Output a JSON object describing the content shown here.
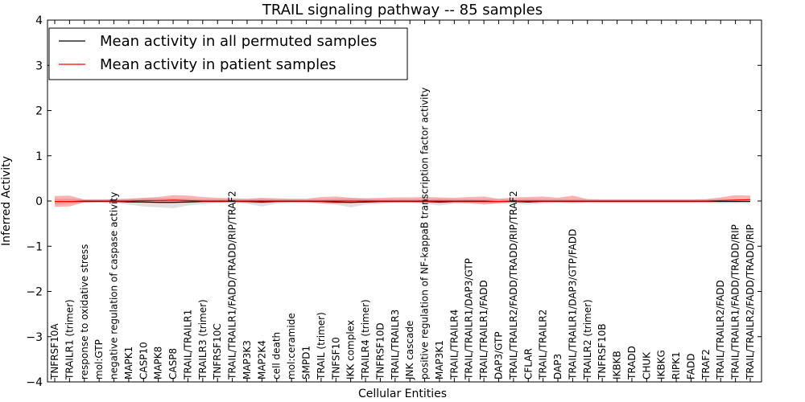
{
  "chart_data": {
    "type": "line",
    "title": "TRAIL signaling pathway -- 85 samples",
    "xlabel": "Cellular Entities",
    "ylabel": "Inferred Activity",
    "ylim": [
      -4,
      4
    ],
    "yticks": [
      "4",
      "3",
      "2",
      "1",
      "0",
      "−1",
      "−2",
      "−3",
      "−4"
    ],
    "ytick_values": [
      4,
      3,
      2,
      1,
      0,
      -1,
      -2,
      -3,
      -4
    ],
    "legend_position": "top-left",
    "categories": [
      "TNFRSF10A",
      "TRAILR1 (trimer)",
      "response to oxidative stress",
      "mol:GTP",
      "negative regulation of caspase activity",
      "MAPK1",
      "CASP10",
      "MAPK8",
      "CASP8",
      "TRAIL/TRAILR1",
      "TRAILR3 (trimer)",
      "TNFRSF10C",
      "TRAIL/TRAILR1/FADD/TRADD/RIP/TRAF2",
      "MAP3K3",
      "MAP2K4",
      "cell death",
      "mol:ceramide",
      "SMPD1",
      "TRAIL (trimer)",
      "TNFSF10",
      "IKK complex",
      "TRAILR4 (trimer)",
      "TNFRSF10D",
      "TRAIL/TRAILR3",
      "JNK cascade",
      "positive regulation of NF-kappaB transcription factor activity",
      "MAP3K1",
      "TRAIL/TRAILR4",
      "TRAIL/TRAILR1/DAP3/GTP",
      "TRAIL/TRAILR1/FADD",
      "DAP3/GTP",
      "TRAIL/TRAILR2/FADD/TRADD/RIP/TRAF2",
      "CFLAR",
      "TRAIL/TRAILR2",
      "DAP3",
      "TRAIL/TRAILR1/DAP3/GTP/FADD",
      "TRAILR2 (trimer)",
      "TNFRSF10B",
      "IKBKB",
      "TRADD",
      "CHUK",
      "IKBKG",
      "RIPK1",
      "FADD",
      "TRAF2",
      "TRAIL/TRAILR2/FADD",
      "TRAIL/TRAILR1/FADD/TRADD/RIP",
      "TRAIL/TRAILR2/FADD/TRADD/RIP"
    ],
    "series": [
      {
        "name": "Mean activity in all permuted samples",
        "color": "#000000",
        "values": [
          -0.01,
          -0.01,
          -0.01,
          -0.01,
          -0.01,
          -0.02,
          -0.02,
          -0.03,
          -0.03,
          -0.02,
          -0.01,
          -0.01,
          -0.01,
          -0.01,
          -0.02,
          -0.01,
          -0.01,
          -0.01,
          -0.01,
          -0.02,
          -0.03,
          -0.02,
          -0.01,
          -0.01,
          -0.01,
          -0.01,
          -0.02,
          -0.01,
          -0.01,
          -0.01,
          -0.01,
          -0.01,
          -0.02,
          -0.01,
          -0.01,
          -0.01,
          -0.01,
          -0.01,
          -0.01,
          -0.01,
          -0.01,
          -0.01,
          -0.01,
          -0.01,
          -0.01,
          -0.01,
          -0.01,
          -0.01
        ],
        "band_low": [
          -0.08,
          -0.06,
          -0.04,
          -0.04,
          -0.05,
          -0.08,
          -0.12,
          -0.14,
          -0.16,
          -0.1,
          -0.07,
          -0.05,
          -0.05,
          -0.06,
          -0.12,
          -0.06,
          -0.05,
          -0.05,
          -0.06,
          -0.08,
          -0.14,
          -0.08,
          -0.06,
          -0.05,
          -0.05,
          -0.06,
          -0.1,
          -0.06,
          -0.05,
          -0.05,
          -0.06,
          -0.06,
          -0.08,
          -0.06,
          -0.05,
          -0.06,
          -0.05,
          -0.05,
          -0.05,
          -0.05,
          -0.05,
          -0.05,
          -0.05,
          -0.05,
          -0.05,
          -0.05,
          -0.05,
          -0.05
        ],
        "band_high": [
          0.05,
          0.05,
          0.04,
          0.04,
          0.04,
          0.05,
          0.06,
          0.06,
          0.06,
          0.05,
          0.04,
          0.04,
          0.04,
          0.04,
          0.05,
          0.04,
          0.04,
          0.04,
          0.04,
          0.05,
          0.06,
          0.05,
          0.04,
          0.04,
          0.04,
          0.04,
          0.05,
          0.04,
          0.04,
          0.04,
          0.04,
          0.04,
          0.05,
          0.04,
          0.04,
          0.04,
          0.04,
          0.04,
          0.04,
          0.04,
          0.04,
          0.04,
          0.04,
          0.04,
          0.04,
          0.04,
          0.04,
          0.04
        ]
      },
      {
        "name": "Mean activity in patient samples",
        "color": "#ff0000",
        "values": [
          -0.01,
          -0.01,
          0.0,
          0.0,
          0.0,
          0.0,
          0.01,
          0.01,
          0.02,
          0.01,
          0.0,
          0.0,
          0.0,
          0.0,
          0.0,
          0.0,
          0.0,
          0.0,
          0.0,
          0.0,
          0.0,
          0.0,
          0.0,
          0.0,
          0.0,
          0.0,
          0.0,
          0.0,
          0.0,
          0.0,
          -0.01,
          0.0,
          0.0,
          0.0,
          0.0,
          0.0,
          0.0,
          0.0,
          0.0,
          0.0,
          0.0,
          0.0,
          0.0,
          0.0,
          0.0,
          0.01,
          0.02,
          0.03
        ],
        "band_low": [
          -0.13,
          -0.12,
          -0.03,
          -0.02,
          -0.02,
          -0.03,
          -0.04,
          -0.05,
          -0.05,
          -0.04,
          -0.03,
          -0.03,
          -0.02,
          -0.04,
          -0.05,
          -0.03,
          -0.02,
          -0.02,
          -0.05,
          -0.06,
          -0.05,
          -0.04,
          -0.04,
          -0.03,
          -0.03,
          -0.04,
          -0.05,
          -0.04,
          -0.05,
          -0.08,
          -0.05,
          -0.03,
          -0.03,
          -0.02,
          -0.02,
          -0.03,
          -0.02,
          -0.02,
          -0.02,
          -0.02,
          -0.02,
          -0.02,
          -0.02,
          -0.02,
          -0.02,
          -0.02,
          -0.02,
          -0.02
        ],
        "band_high": [
          0.11,
          0.12,
          0.03,
          0.03,
          0.04,
          0.05,
          0.07,
          0.09,
          0.13,
          0.12,
          0.09,
          0.07,
          0.06,
          0.05,
          0.07,
          0.06,
          0.05,
          0.05,
          0.09,
          0.1,
          0.07,
          0.06,
          0.07,
          0.08,
          0.08,
          0.09,
          0.08,
          0.07,
          0.09,
          0.1,
          0.05,
          0.08,
          0.09,
          0.1,
          0.07,
          0.12,
          0.04,
          0.03,
          0.03,
          0.03,
          0.03,
          0.03,
          0.03,
          0.03,
          0.04,
          0.08,
          0.13,
          0.12
        ]
      }
    ]
  }
}
